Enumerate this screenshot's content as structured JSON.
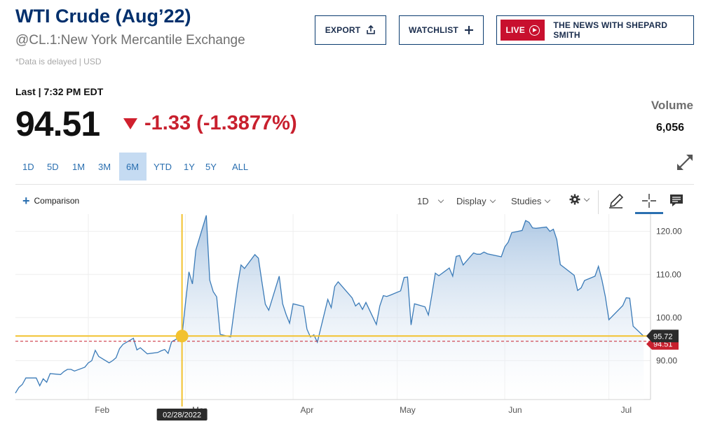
{
  "header": {
    "title": "WTI Crude (Aug’22)",
    "exchange": "@CL.1:New York Mercantile Exchange",
    "delayed": "*Data is delayed | USD"
  },
  "actions": {
    "export_label": "EXPORT",
    "watchlist_label": "WATCHLIST",
    "live_label": "LIVE",
    "live_show": "THE NEWS WITH SHEPARD SMITH"
  },
  "quote": {
    "last_label": "Last | 7:32 PM EDT",
    "price": "94.51",
    "change": "-1.33 (-1.3877%)",
    "volume_label": "Volume",
    "volume_value": "6,056"
  },
  "ranges": [
    {
      "label": "1D",
      "active": false
    },
    {
      "label": "5D",
      "active": false
    },
    {
      "label": "1M",
      "active": false
    },
    {
      "label": "3M",
      "active": false
    },
    {
      "label": "6M",
      "active": true
    },
    {
      "label": "YTD",
      "active": false
    },
    {
      "label": "1Y",
      "active": false
    },
    {
      "label": "5Y",
      "active": false
    },
    {
      "label": "ALL",
      "active": false
    }
  ],
  "toolbar": {
    "comparison_label": "Comparison",
    "interval_label": "1D",
    "display_label": "Display",
    "studies_label": "Studies"
  },
  "colors": {
    "line": "#3b7bb8",
    "crosshair": "#f2c230",
    "negative": "#c8202e",
    "brand": "#002f6c"
  },
  "chart_data": {
    "type": "area",
    "x_tick_labels": [
      "Feb",
      "Mar",
      "Apr",
      "May",
      "Jun",
      "Jul"
    ],
    "y_ticks": [
      90,
      100,
      110,
      120
    ],
    "y_tick_labels": [
      "90.00",
      "100.00",
      "110.00",
      "120.00"
    ],
    "ylim": [
      81,
      124
    ],
    "grid": true,
    "crosshair_date": "02/28/2022",
    "crosshair_value": "95.72",
    "current_price": "94.51",
    "crosshair_y": 95.72,
    "current_y": 94.51,
    "series": [
      {
        "x": [
          "2022-01-11",
          "2022-01-12",
          "2022-01-13",
          "2022-01-14",
          "2022-01-17",
          "2022-01-18",
          "2022-01-19",
          "2022-01-20",
          "2022-01-21",
          "2022-01-24",
          "2022-01-25",
          "2022-01-26",
          "2022-01-27",
          "2022-01-28",
          "2022-01-31",
          "2022-02-01",
          "2022-02-02",
          "2022-02-03",
          "2022-02-04",
          "2022-02-07",
          "2022-02-08",
          "2022-02-09",
          "2022-02-10",
          "2022-02-11",
          "2022-02-14",
          "2022-02-15",
          "2022-02-16",
          "2022-02-17",
          "2022-02-18",
          "2022-02-21",
          "2022-02-22",
          "2022-02-23",
          "2022-02-24",
          "2022-02-25",
          "2022-02-28",
          "2022-03-01",
          "2022-03-02",
          "2022-03-03",
          "2022-03-04",
          "2022-03-07",
          "2022-03-08",
          "2022-03-09",
          "2022-03-10",
          "2022-03-11",
          "2022-03-14",
          "2022-03-15",
          "2022-03-16",
          "2022-03-17",
          "2022-03-18",
          "2022-03-21",
          "2022-03-22",
          "2022-03-23",
          "2022-03-24",
          "2022-03-25",
          "2022-03-28",
          "2022-03-29",
          "2022-03-30",
          "2022-03-31",
          "2022-04-01",
          "2022-04-04",
          "2022-04-05",
          "2022-04-06",
          "2022-04-07",
          "2022-04-08",
          "2022-04-11",
          "2022-04-12",
          "2022-04-13",
          "2022-04-14",
          "2022-04-18",
          "2022-04-19",
          "2022-04-20",
          "2022-04-21",
          "2022-04-22",
          "2022-04-25",
          "2022-04-26",
          "2022-04-27",
          "2022-04-28",
          "2022-04-29",
          "2022-05-02",
          "2022-05-03",
          "2022-05-04",
          "2022-05-05",
          "2022-05-06",
          "2022-05-09",
          "2022-05-10",
          "2022-05-11",
          "2022-05-12",
          "2022-05-13",
          "2022-05-16",
          "2022-05-17",
          "2022-05-18",
          "2022-05-19",
          "2022-05-20",
          "2022-05-23",
          "2022-05-24",
          "2022-05-25",
          "2022-05-26",
          "2022-05-27",
          "2022-05-31",
          "2022-06-01",
          "2022-06-02",
          "2022-06-03",
          "2022-06-06",
          "2022-06-07",
          "2022-06-08",
          "2022-06-09",
          "2022-06-10",
          "2022-06-13",
          "2022-06-14",
          "2022-06-15",
          "2022-06-16",
          "2022-06-17",
          "2022-06-21",
          "2022-06-22",
          "2022-06-23",
          "2022-06-24",
          "2022-06-27",
          "2022-06-28",
          "2022-06-29",
          "2022-06-30",
          "2022-07-01",
          "2022-07-05",
          "2022-07-06",
          "2022-07-07",
          "2022-07-08",
          "2022-07-11"
        ],
        "y": [
          82.5,
          83.8,
          84.5,
          86.0,
          86.0,
          84.2,
          85.8,
          85.0,
          87.0,
          86.8,
          87.5,
          88.0,
          88.0,
          87.6,
          88.5,
          89.5,
          90.0,
          92.4,
          91.0,
          89.5,
          90.0,
          90.7,
          92.8,
          93.8,
          95.2,
          92.5,
          93.0,
          92.3,
          91.6,
          91.9,
          92.3,
          92.6,
          91.7,
          94.4,
          95.72,
          103.4,
          110.6,
          107.8,
          115.7,
          123.7,
          108.7,
          106.0,
          104.8,
          96.1,
          95.5,
          101.5,
          107.5,
          112.2,
          111.4,
          114.6,
          113.8,
          108.4,
          103.1,
          101.7,
          109.6,
          103.2,
          100.7,
          98.7,
          103.2,
          102.6,
          97.3,
          95.5,
          96.0,
          94.3,
          104.2,
          102.3,
          107.2,
          108.3,
          104.6,
          102.7,
          103.4,
          101.9,
          103.5,
          98.4,
          102.7,
          105.1,
          104.9,
          105.2,
          106.2,
          109.3,
          109.4,
          98.3,
          103.2,
          102.5,
          100.6,
          105.3,
          110.3,
          109.7,
          111.5,
          109.6,
          114.2,
          114.4,
          112.2,
          115.0,
          114.7,
          114.7,
          115.2,
          114.8,
          114.1,
          116.4,
          117.5,
          119.7,
          120.2,
          122.5,
          122.1,
          120.8,
          120.7,
          121.0,
          120.0,
          120.5,
          118.1,
          112.3,
          109.8,
          106.3,
          106.9,
          108.6,
          109.6,
          111.9,
          108.7,
          104.8,
          99.5,
          102.8,
          104.6,
          104.5,
          98.0,
          95.7
        ]
      }
    ]
  }
}
